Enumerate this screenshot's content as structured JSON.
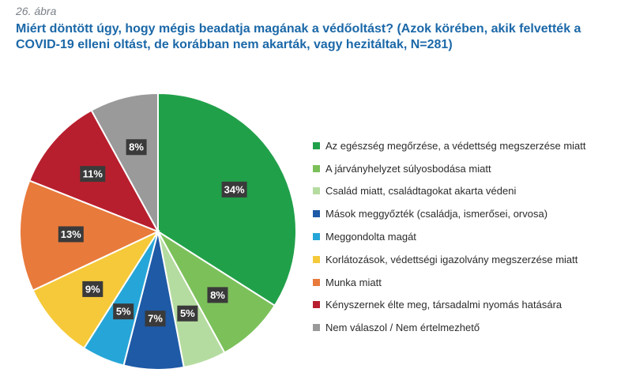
{
  "figure_label": "26. ábra",
  "title": "Miért döntött úgy, hogy mégis beadatja magának a védőoltást? (Azok körében, akik felvették a COVID-19 elleni oltást, de korábban nem akarták, vagy hezitáltak, N=281)",
  "chart_data": {
    "type": "pie",
    "title": "Miért döntött úgy, hogy mégis beadatja magának a védőoltást? (Azok körében, akik felvették a COVID-19 elleni oltást, de korábban nem akarták, vagy hezitáltak, N=281)",
    "legend_position": "right",
    "start": "12 o'clock",
    "direction": "clockwise",
    "slices": [
      {
        "label": "Az egészség megőrzése, a védettség megszerzése miatt",
        "value": 34,
        "display": "34%",
        "color": "#21a04a"
      },
      {
        "label": "A járványhelyzet súlyosbodása miatt",
        "value": 8,
        "display": "8%",
        "color": "#7cc05a"
      },
      {
        "label": "Család miatt, családtagokat akarta védeni",
        "value": 5,
        "display": "5%",
        "color": "#b5dca0"
      },
      {
        "label": "Mások meggyőzték (családja, ismerősei, orvosa)",
        "value": 7,
        "display": "7%",
        "color": "#1e5aa6"
      },
      {
        "label": "Meggondolta magát",
        "value": 5,
        "display": "5%",
        "color": "#26a6d8"
      },
      {
        "label": "Korlátozások, védettségi igazolvány megszerzése miatt",
        "value": 9,
        "display": "9%",
        "color": "#f5c93a"
      },
      {
        "label": "Munka miatt",
        "value": 13,
        "display": "13%",
        "color": "#e87a3c"
      },
      {
        "label": "Kényszernek élte meg, társadalmi nyomás hatására",
        "value": 11,
        "display": "11%",
        "color": "#b81f2e"
      },
      {
        "label": "Nem válaszol / Nem értelmezhető",
        "value": 8,
        "display": "8%",
        "color": "#9a9a9a"
      }
    ]
  }
}
